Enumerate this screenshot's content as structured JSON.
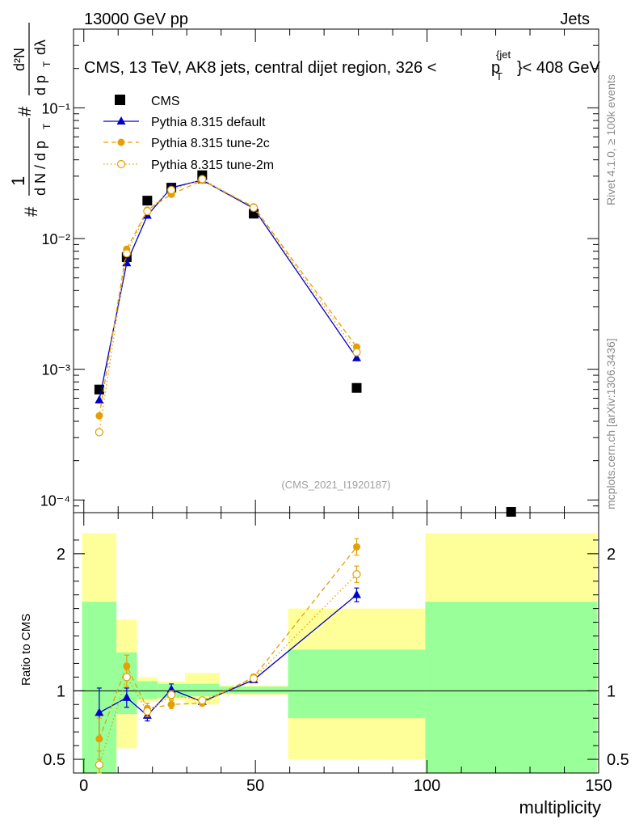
{
  "header": {
    "energy_label": "13000 GeV pp",
    "category_label": "Jets"
  },
  "side_labels": {
    "rivet": "Rivet 4.1.0, ≥ 100k events",
    "mcplots": "mcplots.cern.ch [arXiv:1306.3436]"
  },
  "chart_data": {
    "type": "scatter",
    "title": "CMS, 13 TeV, AK8 jets, central dijet region, 326 < p_T^{jet} < 408 GeV",
    "title_parts": {
      "main": "CMS, 13 TeV, AK8 jets, central dijet region, 326 <",
      "p": "p",
      "sub": "T",
      "sup": "{jet",
      "tail": "}< 408 GeV"
    },
    "watermark": "(CMS_2021_I1920187)",
    "xlabel": "multiplicity",
    "xlim": [
      -3,
      150
    ],
    "xticks": [
      0,
      50,
      100,
      150
    ],
    "ylabel_main": "1/(dN/dp_T) d²N/(dp_T dλ)",
    "ylabel_parts": {
      "hash": "#",
      "one": "1",
      "dN": "d N / d p",
      "d2N": "d²N",
      "dp": "d p",
      "dl": "dλ",
      "T": "T"
    },
    "yscale_main": "log",
    "ylim_main": [
      8e-05,
      0.4
    ],
    "yticks_main": [
      {
        "value": 0.0001,
        "label": "10⁻⁴"
      },
      {
        "value": 0.001,
        "label": "10⁻³"
      },
      {
        "value": 0.01,
        "label": "10⁻²"
      },
      {
        "value": 0.1,
        "label": "10⁻¹"
      }
    ],
    "ratio": {
      "ylabel": "Ratio to CMS",
      "ylim": [
        0.4,
        2.3
      ],
      "yticks": [
        {
          "value": 0.5,
          "label": "0.5"
        },
        {
          "value": 1,
          "label": "1"
        },
        {
          "value": 2,
          "label": "2"
        }
      ],
      "bands": [
        {
          "x0": -0.5,
          "x1": 9.5,
          "inner": [
            0.4,
            1.65
          ],
          "outer": [
            0.38,
            2.15
          ]
        },
        {
          "x0": 9.5,
          "x1": 15.5,
          "inner": [
            0.83,
            1.28
          ],
          "outer": [
            0.58,
            1.52
          ]
        },
        {
          "x0": 15.5,
          "x1": 21.5,
          "inner": [
            0.94,
            1.07
          ],
          "outer": [
            0.92,
            1.1
          ]
        },
        {
          "x0": 21.5,
          "x1": 29.5,
          "inner": [
            0.95,
            1.05
          ],
          "outer": [
            0.93,
            1.07
          ]
        },
        {
          "x0": 29.5,
          "x1": 39.5,
          "inner": [
            0.96,
            1.05
          ],
          "outer": [
            0.9,
            1.13
          ]
        },
        {
          "x0": 39.5,
          "x1": 59.5,
          "inner": [
            0.98,
            1.03
          ],
          "outer": [
            0.97,
            1.04
          ]
        },
        {
          "x0": 59.5,
          "x1": 99.5,
          "inner": [
            0.8,
            1.3
          ],
          "outer": [
            0.5,
            1.6
          ]
        },
        {
          "x0": 99.5,
          "x1": 149.5,
          "inner": [
            0.38,
            1.65
          ],
          "outer": [
            0.38,
            2.15
          ]
        }
      ]
    },
    "series": [
      {
        "name": "CMS",
        "style": "data",
        "color": "#000000",
        "x": [
          4.5,
          12.5,
          18.5,
          25.5,
          34.5,
          49.5,
          79.5,
          124.5
        ],
        "y": [
          0.0007,
          0.0072,
          0.0195,
          0.0245,
          0.0305,
          0.0155,
          0.00072,
          7.8e-05
        ]
      },
      {
        "name": "Pythia 8.315 default",
        "style": "solid",
        "marker": "triangle",
        "color": "#0000cc",
        "x": [
          4.5,
          12.5,
          18.5,
          25.5,
          34.5,
          49.5,
          79.5
        ],
        "y": [
          0.00058,
          0.0065,
          0.015,
          0.0245,
          0.028,
          0.017,
          0.00122
        ],
        "ratio": [
          0.84,
          0.95,
          0.82,
          1.01,
          0.92,
          1.08,
          1.7
        ],
        "ratio_err": [
          0.18,
          0.07,
          0.04,
          0.04,
          0.02,
          0.02,
          0.05
        ]
      },
      {
        "name": "Pythia 8.315 tune-2c",
        "style": "dashed",
        "marker": "circle",
        "color": "#e69f00",
        "x": [
          4.5,
          12.5,
          18.5,
          25.5,
          34.5,
          49.5,
          79.5
        ],
        "y": [
          0.00044,
          0.0083,
          0.0165,
          0.0218,
          0.0278,
          0.0175,
          0.00148
        ],
        "ratio": [
          0.65,
          1.18,
          0.87,
          0.9,
          0.91,
          1.1,
          2.05
        ],
        "ratio_err": [
          0.15,
          0.08,
          0.04,
          0.03,
          0.02,
          0.02,
          0.06
        ]
      },
      {
        "name": "Pythia 8.315 tune-2m",
        "style": "dotted",
        "marker": "open-circle",
        "color": "#e69f00",
        "x": [
          4.5,
          12.5,
          18.5,
          25.5,
          34.5,
          49.5,
          79.5
        ],
        "y": [
          0.00033,
          0.0077,
          0.0162,
          0.0235,
          0.0285,
          0.0172,
          0.00135
        ],
        "ratio": [
          0.46,
          1.1,
          0.85,
          0.97,
          0.93,
          1.09,
          1.85
        ],
        "ratio_err": [
          0.1,
          0.07,
          0.04,
          0.03,
          0.02,
          0.02,
          0.06
        ]
      }
    ]
  }
}
